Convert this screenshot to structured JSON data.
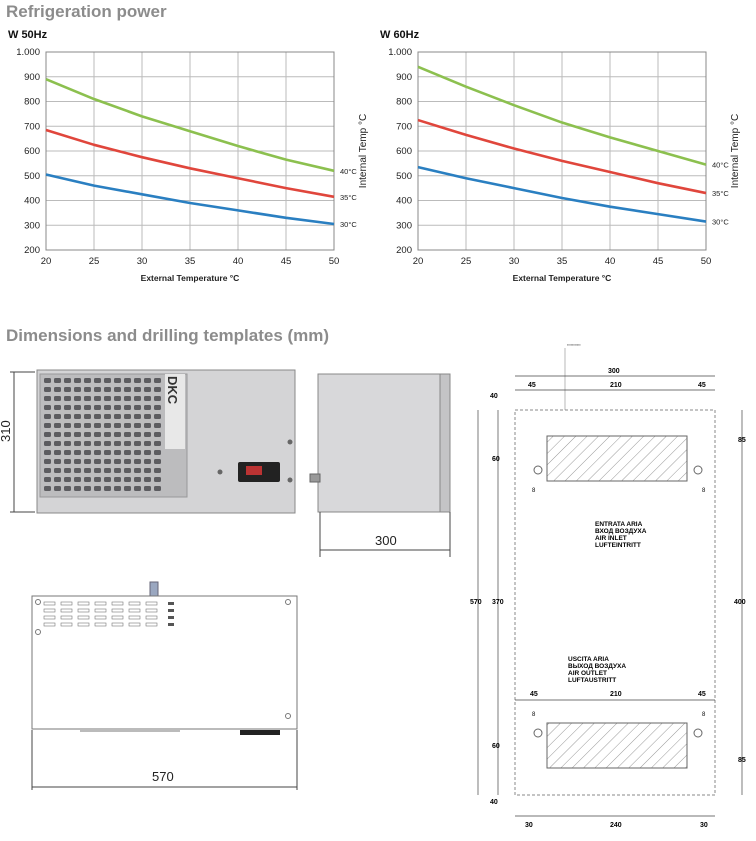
{
  "sections": {
    "refrigeration_title": "Refrigeration power",
    "dimensions_title": "Dimensions and drilling templates (mm)"
  },
  "chart_data": [
    {
      "type": "line",
      "title": "W 50Hz",
      "xlabel": "External Temperature °C",
      "ylabel": "Internal Temp °C",
      "x": [
        20,
        25,
        30,
        35,
        40,
        45,
        50
      ],
      "xlim": [
        20,
        50
      ],
      "ylim": [
        200,
        1000
      ],
      "xticks": [
        "20",
        "25",
        "30",
        "35",
        "40",
        "45",
        "50"
      ],
      "yticks": [
        "200",
        "300",
        "400",
        "500",
        "600",
        "700",
        "800",
        "900",
        "1.000"
      ],
      "grid": true,
      "series": [
        {
          "name": "40°C",
          "color": "#8cc04f",
          "values": [
            890,
            810,
            740,
            680,
            620,
            565,
            520
          ]
        },
        {
          "name": "35°C",
          "color": "#e0463c",
          "values": [
            685,
            625,
            575,
            530,
            490,
            450,
            415
          ]
        },
        {
          "name": "30°C",
          "color": "#2a7fc1",
          "values": [
            505,
            460,
            425,
            390,
            360,
            330,
            305
          ]
        }
      ]
    },
    {
      "type": "line",
      "title": "W 60Hz",
      "xlabel": "External Temperature °C",
      "ylabel": "Internal Temp °C",
      "x": [
        20,
        25,
        30,
        35,
        40,
        45,
        50
      ],
      "xlim": [
        20,
        50
      ],
      "ylim": [
        200,
        1000
      ],
      "xticks": [
        "20",
        "25",
        "30",
        "35",
        "40",
        "45",
        "50"
      ],
      "yticks": [
        "200",
        "300",
        "400",
        "500",
        "600",
        "700",
        "800",
        "900",
        "1.000"
      ],
      "grid": true,
      "series": [
        {
          "name": "40°C",
          "color": "#8cc04f",
          "values": [
            940,
            860,
            785,
            715,
            655,
            600,
            545
          ]
        },
        {
          "name": "35°C",
          "color": "#e0463c",
          "values": [
            725,
            665,
            610,
            560,
            515,
            470,
            430
          ]
        },
        {
          "name": "30°C",
          "color": "#2a7fc1",
          "values": [
            535,
            490,
            450,
            410,
            375,
            345,
            315
          ]
        }
      ]
    }
  ],
  "dimensions": {
    "front_height": "310",
    "side_depth": "300",
    "top_width": "570",
    "brand": "DKC"
  },
  "template": {
    "dims": {
      "w300": "300",
      "w45a": "45",
      "w210a": "210",
      "w45b": "45",
      "h40top": "40",
      "h85top": "85",
      "h60top": "60",
      "h570": "570",
      "h370": "370",
      "h400": "400",
      "w45c": "45",
      "w210b": "210",
      "w45d": "45",
      "h60bot": "60",
      "h85bot": "85",
      "h40bot": "40",
      "w30a": "30",
      "w240": "240",
      "w30b": "30",
      "d8a": "8",
      "d8b": "8",
      "d8c": "8",
      "d8d": "8"
    },
    "inlet_label": [
      "ENTRATA ARIA",
      "ВХОД ВОЗДУХА",
      "AIR INLET",
      "LUFTEINTRITT"
    ],
    "outlet_label": [
      "USCITA ARIA",
      "ВЫХОД ВОЗДУХА",
      "AIR OUTLET",
      "LUFTAUSTRITT"
    ]
  }
}
